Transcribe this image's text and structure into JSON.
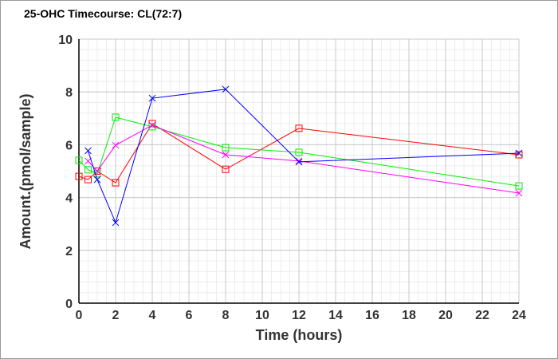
{
  "chart_data": {
    "type": "line",
    "title": "25-OHC Timecourse: CL(72:7)",
    "xlabel": "Time (hours)",
    "ylabel": "Amount.(pmol/sample)",
    "xlim": [
      0,
      24
    ],
    "ylim": [
      0,
      10
    ],
    "xticks": [
      0,
      2,
      4,
      6,
      8,
      10,
      12,
      14,
      16,
      18,
      20,
      22,
      24
    ],
    "yticks": [
      0,
      2,
      4,
      6,
      8,
      10
    ],
    "grid": true,
    "series": [
      {
        "name": "red",
        "color": "#ff0000",
        "marker": "square",
        "x": [
          0,
          0.5,
          1,
          2,
          4,
          8,
          12,
          24
        ],
        "y": [
          4.8,
          4.68,
          5.0,
          4.56,
          6.8,
          5.07,
          6.62,
          5.62
        ]
      },
      {
        "name": "green",
        "color": "#00ee00",
        "marker": "square",
        "x": [
          0,
          0.5,
          1,
          2,
          4,
          8,
          12,
          24
        ],
        "y": [
          5.41,
          5.05,
          4.9,
          7.04,
          6.68,
          5.89,
          5.71,
          4.44
        ]
      },
      {
        "name": "magenta",
        "color": "#ff00ff",
        "marker": "x",
        "x": [
          0.5,
          1,
          2,
          4,
          8,
          12,
          24
        ],
        "y": [
          5.38,
          5.0,
          5.98,
          6.74,
          5.62,
          5.38,
          4.17
        ]
      },
      {
        "name": "blue",
        "color": "#0000ff",
        "marker": "x",
        "x": [
          0.5,
          1,
          2,
          4,
          8,
          12,
          24
        ],
        "y": [
          5.77,
          4.68,
          3.05,
          7.76,
          8.1,
          5.35,
          5.68
        ]
      }
    ]
  }
}
